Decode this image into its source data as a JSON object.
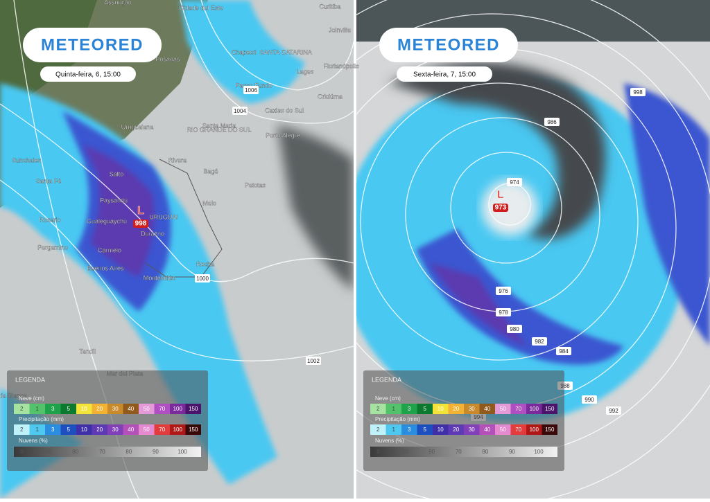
{
  "panels": [
    {
      "logo": "METEORED",
      "time": "Quinta-feira, 6, 15:00",
      "low": {
        "letter": "L",
        "value": "998"
      },
      "places": [
        "Assunção",
        "Cidade del Este",
        "Curitiba",
        "Posadas",
        "Chapecó",
        "SANTA CATARINA",
        "Joinville",
        "Florianópolis",
        "Passo Fundo",
        "Lages",
        "Criciúma",
        "Caxias do Sul",
        "Porto Alegre",
        "Uruguaiana",
        "RIO GRANDE DO SUL",
        "Santa Maria",
        "Rivera",
        "Salto",
        "Bagé",
        "Pelotas",
        "Paysandú",
        "Gualeguaychú",
        "Melo",
        "URUGUAI",
        "Durazno",
        "Rosario",
        "Pergamino",
        "Carmelo",
        "Buenos Aires",
        "Montevidéo",
        "Rocha",
        "Santa Fé",
        "Sunchales",
        "Tandil",
        "Mar del Plata",
        "Bahía Blanca"
      ],
      "isobars": [
        "1006",
        "1004",
        "1000",
        "1002"
      ],
      "legend": {
        "title": "LEGENDA",
        "snow": {
          "title": "Neve (cm)",
          "labels": [
            "2",
            "1",
            "3",
            "5",
            "10",
            "20",
            "30",
            "40",
            "50",
            "70",
            "100",
            "150"
          ]
        },
        "precip": {
          "title": "Precipitação (mm)",
          "labels": [
            "2",
            "1",
            "3",
            "5",
            "10",
            "20",
            "30",
            "40",
            "50",
            "70",
            "100",
            "150"
          ]
        },
        "clouds": {
          "title": "Nuvens (%)",
          "labels": [
            "0",
            "50",
            "60",
            "70",
            "80",
            "90",
            "100"
          ]
        }
      }
    },
    {
      "logo": "METEORED",
      "time": "Sexta-feira, 7, 15:00",
      "low": {
        "letter": "L",
        "value": "973"
      },
      "places": [],
      "isobars": [
        "998",
        "986",
        "974",
        "976",
        "978",
        "980",
        "982",
        "984",
        "988",
        "990",
        "992",
        "994"
      ],
      "legend": {
        "title": "LEGENDA",
        "snow": {
          "title": "Neve (cm)",
          "labels": [
            "2",
            "1",
            "3",
            "5",
            "10",
            "20",
            "30",
            "40",
            "50",
            "70",
            "100",
            "150"
          ]
        },
        "precip": {
          "title": "Precipitação (mm)",
          "labels": [
            "2",
            "1",
            "3",
            "5",
            "10",
            "20",
            "30",
            "40",
            "50",
            "70",
            "100",
            "150"
          ]
        },
        "clouds": {
          "title": "Nuvens (%)",
          "labels": [
            "0",
            "50",
            "60",
            "70",
            "80",
            "90",
            "100"
          ]
        }
      }
    }
  ]
}
